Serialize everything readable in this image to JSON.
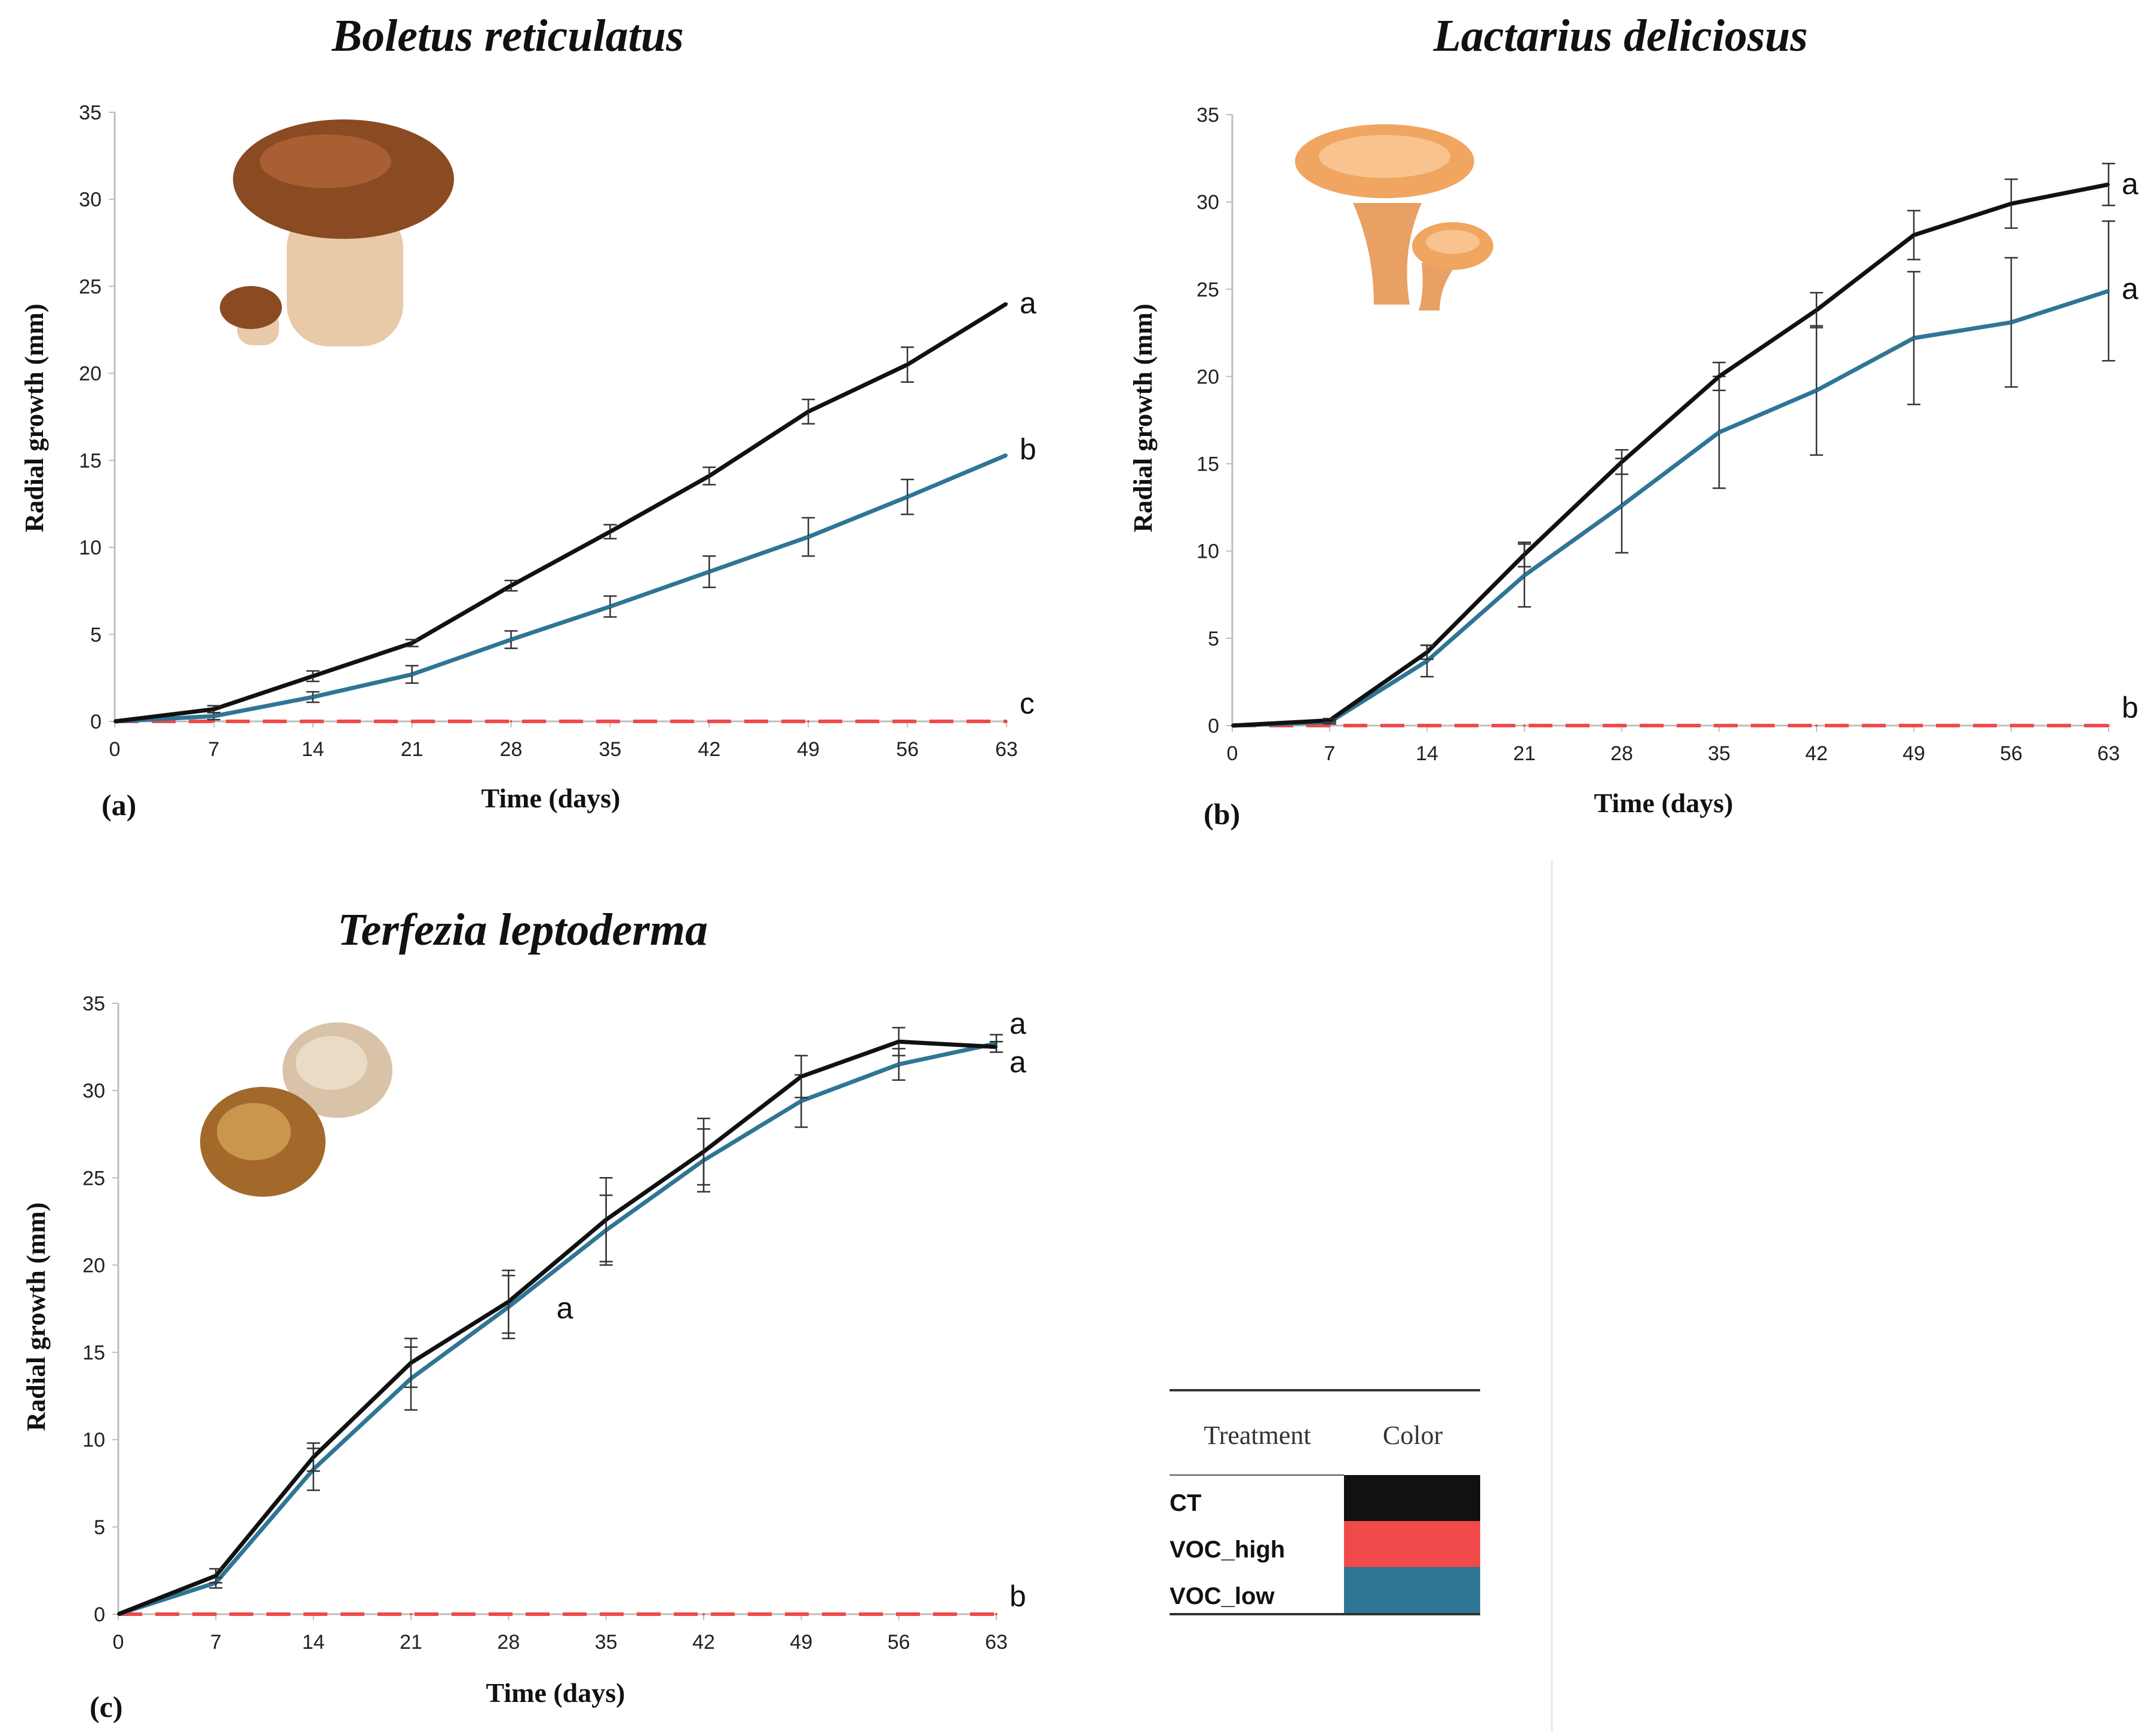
{
  "colors": {
    "CT": "#111111",
    "VOC_high": "#f04a4a",
    "VOC_low": "#2f7596"
  },
  "legend": {
    "header_treatment": "Treatment",
    "header_color": "Color",
    "rows": [
      {
        "label": "CT",
        "color": "#111111"
      },
      {
        "label": "VOC_high",
        "color": "#f04a4a"
      },
      {
        "label": "VOC_low",
        "color": "#2f7596"
      }
    ]
  },
  "chart_data": [
    {
      "type": "line",
      "panel": "(a)",
      "title": "Boletus reticulatus",
      "xlabel": "Time (days)",
      "ylabel": "Radial growth (mm)",
      "x": [
        0,
        7,
        14,
        21,
        28,
        35,
        42,
        49,
        56,
        63
      ],
      "xticks": [
        "0",
        "7",
        "14",
        "21",
        "28",
        "35",
        "42",
        "49",
        "56",
        "63"
      ],
      "yticks": [
        "0",
        "5",
        "10",
        "15",
        "20",
        "25",
        "30",
        "35"
      ],
      "ylim": [
        0,
        35
      ],
      "series": [
        {
          "name": "CT",
          "values": [
            0,
            0.7,
            2.6,
            4.5,
            7.8,
            10.9,
            14.1,
            17.8,
            20.5,
            24.0
          ],
          "err": [
            0,
            0.2,
            0.3,
            0.2,
            0.3,
            0.4,
            0.5,
            0.7,
            1.0,
            0.0
          ]
        },
        {
          "name": "VOC_low",
          "values": [
            0,
            0.3,
            1.4,
            2.7,
            4.7,
            6.6,
            8.6,
            10.6,
            12.9,
            15.3
          ],
          "err": [
            0,
            0.2,
            0.3,
            0.5,
            0.5,
            0.6,
            0.9,
            1.1,
            1.0,
            0.0
          ]
        },
        {
          "name": "VOC_high",
          "values": [
            0,
            0,
            0,
            0,
            0,
            0,
            0,
            0,
            0,
            0
          ],
          "err": [
            0,
            0,
            0,
            0,
            0,
            0,
            0,
            0,
            0,
            0
          ]
        }
      ],
      "annotations": [
        {
          "text": "a",
          "x": 63,
          "y": 24.0
        },
        {
          "text": "b",
          "x": 63,
          "y": 15.6
        },
        {
          "text": "c",
          "x": 63,
          "y": 1.0
        }
      ]
    },
    {
      "type": "line",
      "panel": "(b)",
      "title": "Lactarius deliciosus",
      "xlabel": "Time (days)",
      "ylabel": "Radial growth (mm)",
      "x": [
        0,
        7,
        14,
        21,
        28,
        35,
        42,
        49,
        56,
        63
      ],
      "xticks": [
        "0",
        "7",
        "14",
        "21",
        "28",
        "35",
        "42",
        "49",
        "56",
        "63"
      ],
      "yticks": [
        "0",
        "5",
        "10",
        "15",
        "20",
        "25",
        "30",
        "35"
      ],
      "ylim": [
        0,
        35
      ],
      "series": [
        {
          "name": "CT",
          "values": [
            0,
            0.3,
            4.2,
            9.8,
            15.1,
            20.0,
            23.8,
            28.1,
            29.9,
            31.0
          ],
          "err": [
            0,
            0.1,
            0.4,
            0.7,
            0.7,
            0.8,
            1.0,
            1.4,
            1.4,
            1.2
          ]
        },
        {
          "name": "VOC_low",
          "values": [
            0,
            0.2,
            3.7,
            8.6,
            12.6,
            16.8,
            19.2,
            22.2,
            23.1,
            24.9
          ],
          "err": [
            0,
            0.1,
            0.9,
            1.8,
            2.7,
            3.2,
            3.7,
            3.8,
            3.7,
            4.0
          ]
        },
        {
          "name": "VOC_high",
          "values": [
            0,
            0,
            0,
            0,
            0,
            0,
            0,
            0,
            0,
            0
          ],
          "err": [
            0,
            0,
            0,
            0,
            0,
            0,
            0,
            0,
            0,
            0
          ]
        }
      ],
      "annotations": [
        {
          "text": "a",
          "x": 63,
          "y": 31.0
        },
        {
          "text": "a",
          "x": 63,
          "y": 25.0
        },
        {
          "text": "b",
          "x": 63,
          "y": 1.0
        }
      ]
    },
    {
      "type": "line",
      "panel": "(c)",
      "title": "Terfezia leptoderma",
      "xlabel": "Time (days)",
      "ylabel": "Radial growth (mm)",
      "x": [
        0,
        7,
        14,
        21,
        28,
        35,
        42,
        49,
        56,
        63
      ],
      "xticks": [
        "0",
        "7",
        "14",
        "21",
        "28",
        "35",
        "42",
        "49",
        "56",
        "63"
      ],
      "yticks": [
        "0",
        "5",
        "10",
        "15",
        "20",
        "25",
        "30",
        "35"
      ],
      "ylim": [
        0,
        35
      ],
      "series": [
        {
          "name": "CT",
          "values": [
            0,
            2.2,
            9.0,
            14.4,
            17.9,
            22.6,
            26.5,
            30.8,
            32.8,
            32.5
          ],
          "err": [
            0,
            0.4,
            0.8,
            1.4,
            1.8,
            2.4,
            1.9,
            1.2,
            0.8,
            0.3
          ]
        },
        {
          "name": "VOC_low",
          "values": [
            0,
            1.8,
            8.3,
            13.5,
            17.6,
            22.0,
            26.0,
            29.4,
            31.5,
            32.7
          ],
          "err": [
            0,
            0.3,
            1.2,
            1.8,
            1.8,
            2.0,
            1.8,
            1.5,
            0.9,
            0.5
          ]
        },
        {
          "name": "VOC_high",
          "values": [
            0,
            0,
            0,
            0,
            0,
            0,
            0,
            0,
            0,
            0
          ],
          "err": [
            0,
            0,
            0,
            0,
            0,
            0,
            0,
            0,
            0,
            0
          ]
        }
      ],
      "annotations": [
        {
          "text": "a",
          "x": 63,
          "y": 33.8
        },
        {
          "text": "a",
          "x": 63,
          "y": 31.6
        },
        {
          "text": "a",
          "x": 30.5,
          "y": 17.5
        },
        {
          "text": "b",
          "x": 63,
          "y": 1.0
        }
      ]
    }
  ]
}
